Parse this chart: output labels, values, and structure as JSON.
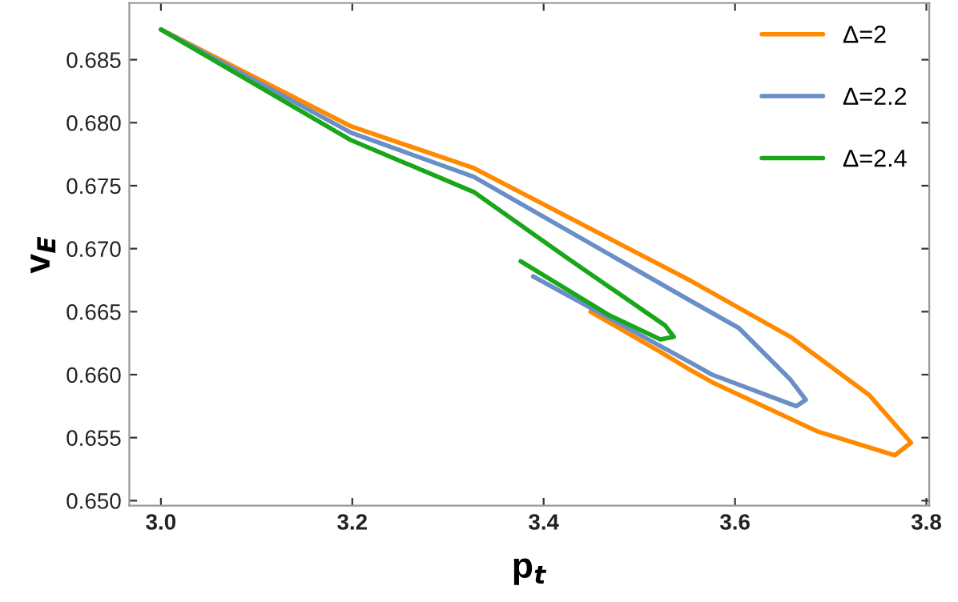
{
  "chart_data": {
    "type": "line",
    "xlabel": "p$_{t}$",
    "ylabel": "v$_{E}$",
    "xlim": [
      2.967,
      3.803
    ],
    "ylim": [
      0.6496,
      0.6895
    ],
    "xticks": [
      {
        "value": 3.0,
        "label": "3.0"
      },
      {
        "value": 3.2,
        "label": "3.2"
      },
      {
        "value": 3.4,
        "label": "3.4"
      },
      {
        "value": 3.6,
        "label": "3.6"
      },
      {
        "value": 3.8,
        "label": "3.8"
      }
    ],
    "yticks": [
      {
        "value": 0.65,
        "label": "0.650"
      },
      {
        "value": 0.655,
        "label": "0.655"
      },
      {
        "value": 0.66,
        "label": "0.660"
      },
      {
        "value": 0.665,
        "label": "0.665"
      },
      {
        "value": 0.67,
        "label": "0.670"
      },
      {
        "value": 0.675,
        "label": "0.675"
      },
      {
        "value": 0.68,
        "label": "0.680"
      },
      {
        "value": 0.685,
        "label": "0.685"
      }
    ],
    "grid": false,
    "legend": "top right",
    "line_style": "solid",
    "marker": "none",
    "series": [
      {
        "name": "Δ=2",
        "color": "#ff8a00",
        "x": [
          3.0,
          3.199,
          3.327,
          3.555,
          3.658,
          3.74,
          3.784,
          3.767,
          3.686,
          3.576,
          3.555,
          3.522,
          3.449
        ],
        "values": [
          0.6874,
          0.6797,
          0.6764,
          0.6674,
          0.663,
          0.6584,
          0.6546,
          0.6536,
          0.6555,
          0.6594,
          0.6603,
          0.6618,
          0.665
        ]
      },
      {
        "name": "Δ=2.2",
        "color": "#6a8fc6",
        "x": [
          3.0,
          3.199,
          3.327,
          3.555,
          3.604,
          3.658,
          3.674,
          3.664,
          3.576,
          3.555,
          3.389
        ],
        "values": [
          0.6874,
          0.6792,
          0.6757,
          0.6658,
          0.6637,
          0.6596,
          0.658,
          0.6575,
          0.66,
          0.6609,
          0.6678
        ]
      },
      {
        "name": "Δ=2.4",
        "color": "#1aa61a",
        "x": [
          3.0,
          3.199,
          3.327,
          3.424,
          3.527,
          3.536,
          3.522,
          3.469,
          3.376
        ],
        "values": [
          0.6874,
          0.6786,
          0.6745,
          0.6693,
          0.6639,
          0.663,
          0.6628,
          0.6647,
          0.669
        ]
      }
    ]
  }
}
